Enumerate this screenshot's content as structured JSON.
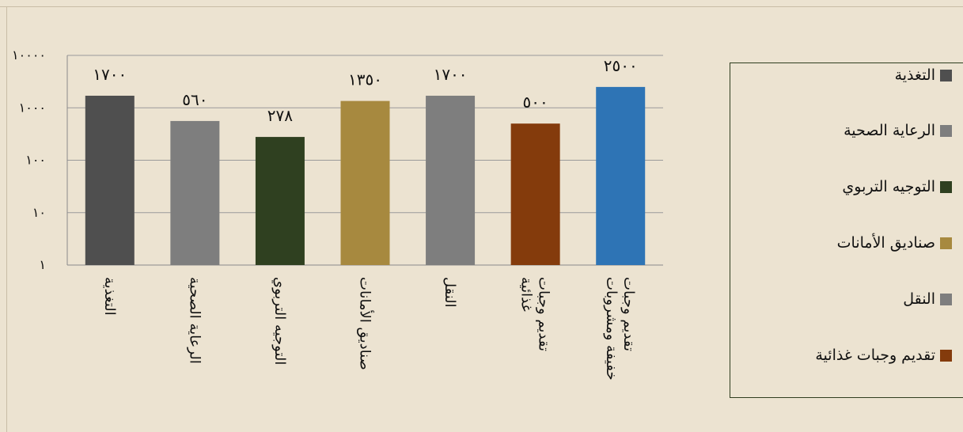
{
  "chart_data": {
    "type": "bar",
    "yscale": "log",
    "ylim": [
      1,
      10000
    ],
    "ytick_labels": [
      "١",
      "١٠",
      "١٠٠",
      "١٠٠٠",
      "١٠٠٠٠"
    ],
    "categories": [
      "التغذية",
      "الرعاية الصحية",
      "التوجيه التربوي",
      "صناديق الأمانات",
      "النقل",
      "تقديم وجبات غذائية",
      "تقديم وجبات خفيفة ومشروبات"
    ],
    "category_lines": [
      [
        "التغذية"
      ],
      [
        "الرعاية الصحية"
      ],
      [
        "التوجيه التربوي"
      ],
      [
        "صناديق الأمانات"
      ],
      [
        "النقل"
      ],
      [
        "تقديم وجبات",
        "غذائية"
      ],
      [
        "تقديم وجبات",
        "خفيفة ومشروبات"
      ]
    ],
    "values": [
      1700,
      560,
      278,
      1350,
      1700,
      500,
      2500
    ],
    "data_labels": [
      "١٧٠٠",
      "٥٦٠",
      "٢٧٨",
      "١٣٥٠",
      "١٧٠٠",
      "٥٠٠",
      "٢٥٠٠"
    ],
    "colors": [
      "#4f4f4f",
      "#7e7e7e",
      "#2f4020",
      "#a7893f",
      "#7e7e7e",
      "#843b0c",
      "#2e74b5"
    ],
    "grid": true,
    "legend": {
      "position": "right",
      "entries": [
        {
          "label": "التغذية",
          "color": "#4f4f4f"
        },
        {
          "label": "الرعاية الصحية",
          "color": "#7e7e7e"
        },
        {
          "label": "التوجيه التربوي",
          "color": "#2f4020"
        },
        {
          "label": "صناديق الأمانات",
          "color": "#a7893f"
        },
        {
          "label": "النقل",
          "color": "#7e7e7e"
        },
        {
          "label": "تقديم وجبات غذائية",
          "color": "#843b0c"
        }
      ]
    }
  }
}
